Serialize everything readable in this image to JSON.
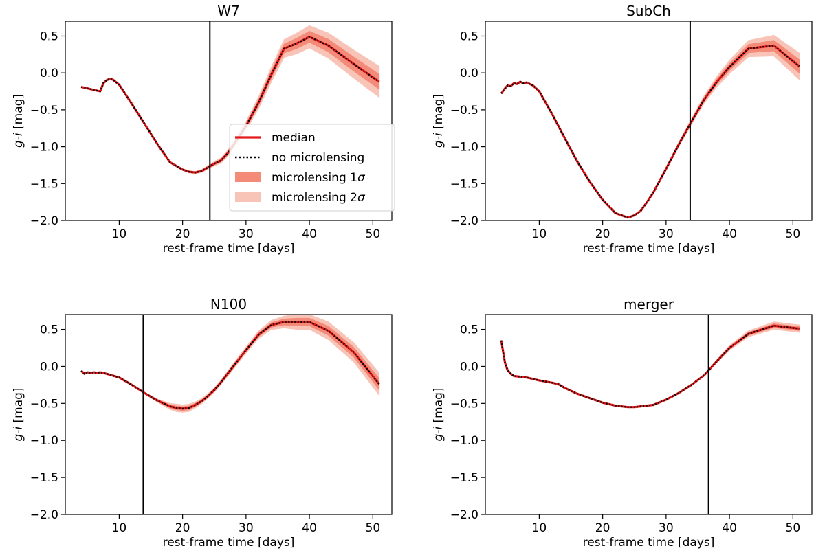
{
  "figure": {
    "ylabel_italic": "g-i",
    "ylabel_unit": " [mag]",
    "xlabel": "rest-frame time [days]",
    "colors": {
      "median": "#e31a1c",
      "no_microlensing": "#000000",
      "band_1sigma": "#f48a78",
      "band_2sigma": "#f9c4b8",
      "tfit_line": "#000000"
    }
  },
  "legend": {
    "entries": [
      {
        "key": "median",
        "label": "median"
      },
      {
        "key": "no_microlensing",
        "label": "no microlensing"
      },
      {
        "key": "band_1sigma",
        "label": "microlensing 1σ",
        "label_plain": "microlensing 1",
        "label_symbol": "σ"
      },
      {
        "key": "band_2sigma",
        "label": "microlensing 2σ",
        "label_plain": "microlensing 2",
        "label_symbol": "σ"
      }
    ],
    "placement": "center-right of first panel"
  },
  "chart_data": [
    {
      "type": "line",
      "title": "W7",
      "xlabel": "rest-frame time [days]",
      "ylabel": "g-i [mag]",
      "xlim": [
        1.5,
        53
      ],
      "ylim": [
        -2.0,
        0.7
      ],
      "xticks": [
        10,
        20,
        30,
        40,
        50
      ],
      "yticks": [
        0.5,
        0.0,
        -0.5,
        -1.0,
        -1.5,
        -2.0
      ],
      "ytick_labels": [
        "0.5",
        "0.0",
        "−0.5",
        "−1.0",
        "−1.5",
        "−2.0"
      ],
      "vertical_line_x": 24.3,
      "x": [
        4,
        5,
        6,
        7,
        7.5,
        8,
        8.5,
        9,
        10,
        12,
        14,
        16,
        18,
        20,
        21,
        22,
        23,
        24,
        25,
        26,
        27,
        28,
        30,
        32,
        34,
        36,
        38,
        40,
        43,
        47,
        51
      ],
      "median": [
        -0.19,
        -0.21,
        -0.23,
        -0.25,
        -0.14,
        -0.1,
        -0.08,
        -0.09,
        -0.16,
        -0.42,
        -0.69,
        -0.96,
        -1.21,
        -1.31,
        -1.34,
        -1.35,
        -1.33,
        -1.28,
        -1.23,
        -1.19,
        -1.1,
        -0.98,
        -0.72,
        -0.4,
        -0.02,
        0.33,
        0.4,
        0.49,
        0.37,
        0.12,
        -0.12
      ],
      "band_2sigma_spread": [
        0,
        0,
        0,
        0,
        0,
        0,
        0,
        0,
        0,
        0,
        0,
        0,
        0,
        0.01,
        0.015,
        0.015,
        0.02,
        0.025,
        0.03,
        0.035,
        0.04,
        0.05,
        0.06,
        0.08,
        0.1,
        0.12,
        0.14,
        0.15,
        0.17,
        0.19,
        0.21
      ],
      "band_1sigma_spread": [
        0,
        0,
        0,
        0,
        0,
        0,
        0,
        0,
        0,
        0,
        0,
        0,
        0,
        0.005,
        0.007,
        0.008,
        0.01,
        0.012,
        0.014,
        0.017,
        0.02,
        0.025,
        0.03,
        0.04,
        0.05,
        0.06,
        0.07,
        0.075,
        0.085,
        0.095,
        0.1
      ]
    },
    {
      "type": "line",
      "title": "SubCh",
      "xlabel": "rest-frame time [days]",
      "ylabel": "g-i [mag]",
      "xlim": [
        1.5,
        53
      ],
      "ylim": [
        -2.0,
        0.7
      ],
      "xticks": [
        10,
        20,
        30,
        40,
        50
      ],
      "yticks": [
        0.5,
        0.0,
        -0.5,
        -1.0,
        -1.5,
        -2.0
      ],
      "ytick_labels": [
        "0.5",
        "0.0",
        "−0.5",
        "−1.0",
        "−1.5",
        "−2.0"
      ],
      "vertical_line_x": 33.8,
      "x": [
        4,
        4.5,
        5,
        5.5,
        6,
        6.5,
        7,
        7.5,
        8,
        9,
        10,
        12,
        14,
        16,
        18,
        20,
        22,
        23,
        24,
        25,
        26,
        27,
        28,
        30,
        32,
        34,
        36,
        38,
        40,
        43,
        47,
        51
      ],
      "median": [
        -0.28,
        -0.22,
        -0.17,
        -0.18,
        -0.14,
        -0.15,
        -0.12,
        -0.14,
        -0.13,
        -0.17,
        -0.25,
        -0.55,
        -0.88,
        -1.2,
        -1.48,
        -1.72,
        -1.9,
        -1.93,
        -1.96,
        -1.93,
        -1.87,
        -1.75,
        -1.62,
        -1.3,
        -0.97,
        -0.66,
        -0.36,
        -0.12,
        0.08,
        0.33,
        0.37,
        0.09
      ],
      "band_2sigma_spread": [
        0,
        0,
        0,
        0,
        0,
        0,
        0,
        0,
        0,
        0,
        0,
        0,
        0,
        0,
        0,
        0,
        0,
        0,
        0,
        0,
        0,
        0,
        0.01,
        0.02,
        0.03,
        0.04,
        0.05,
        0.07,
        0.09,
        0.11,
        0.14,
        0.18
      ],
      "band_1sigma_spread": [
        0,
        0,
        0,
        0,
        0,
        0,
        0,
        0,
        0,
        0,
        0,
        0,
        0,
        0,
        0,
        0,
        0,
        0,
        0,
        0,
        0,
        0,
        0.005,
        0.01,
        0.015,
        0.02,
        0.025,
        0.035,
        0.045,
        0.055,
        0.07,
        0.09
      ]
    },
    {
      "type": "line",
      "title": "N100",
      "xlabel": "rest-frame time [days]",
      "ylabel": "g-i [mag]",
      "xlim": [
        1.5,
        53
      ],
      "ylim": [
        -2.0,
        0.7
      ],
      "xticks": [
        10,
        20,
        30,
        40,
        50
      ],
      "yticks": [
        0.5,
        0.0,
        -0.5,
        -1.0,
        -1.5,
        -2.0
      ],
      "ytick_labels": [
        "0.5",
        "0.0",
        "−0.5",
        "−1.0",
        "−1.5",
        "−2.0"
      ],
      "vertical_line_x": 13.8,
      "x": [
        4,
        4.5,
        5,
        5.5,
        6,
        6.5,
        7,
        8,
        10,
        12,
        14,
        16,
        18,
        19,
        20,
        21,
        22,
        23,
        24,
        25,
        26,
        28,
        30,
        32,
        34,
        36,
        38,
        40,
        43,
        47,
        51
      ],
      "median": [
        -0.06,
        -0.1,
        -0.08,
        -0.09,
        -0.08,
        -0.09,
        -0.08,
        -0.1,
        -0.15,
        -0.25,
        -0.36,
        -0.46,
        -0.54,
        -0.56,
        -0.57,
        -0.56,
        -0.52,
        -0.47,
        -0.4,
        -0.32,
        -0.22,
        0.0,
        0.22,
        0.43,
        0.56,
        0.6,
        0.6,
        0.6,
        0.48,
        0.19,
        -0.24
      ],
      "band_2sigma_spread": [
        0,
        0,
        0,
        0,
        0,
        0,
        0,
        0,
        0,
        0,
        0.01,
        0.02,
        0.04,
        0.05,
        0.05,
        0.05,
        0.04,
        0.035,
        0.03,
        0.03,
        0.03,
        0.04,
        0.04,
        0.05,
        0.06,
        0.08,
        0.1,
        0.1,
        0.12,
        0.13,
        0.15
      ],
      "band_1sigma_spread": [
        0,
        0,
        0,
        0,
        0,
        0,
        0,
        0,
        0,
        0,
        0.005,
        0.01,
        0.02,
        0.025,
        0.025,
        0.025,
        0.02,
        0.017,
        0.015,
        0.015,
        0.015,
        0.02,
        0.02,
        0.025,
        0.03,
        0.04,
        0.05,
        0.05,
        0.06,
        0.065,
        0.075
      ]
    },
    {
      "type": "line",
      "title": "merger",
      "xlabel": "rest-frame time [days]",
      "ylabel": "g-i [mag]",
      "xlim": [
        1.5,
        53
      ],
      "ylim": [
        -2.0,
        0.7
      ],
      "xticks": [
        10,
        20,
        30,
        40,
        50
      ],
      "yticks": [
        0.5,
        0.0,
        -0.5,
        -1.0,
        -1.5,
        -2.0
      ],
      "ytick_labels": [
        "0.5",
        "0.0",
        "−0.5",
        "−1.0",
        "−1.5",
        "−2.0"
      ],
      "vertical_line_x": 36.7,
      "x": [
        4,
        4.3,
        4.6,
        5,
        5.5,
        6,
        7,
        8,
        10,
        12,
        13,
        14,
        16,
        18,
        20,
        22,
        24,
        25,
        26,
        28,
        30,
        32,
        34,
        36,
        38,
        40,
        43,
        47,
        51
      ],
      "median": [
        0.35,
        0.2,
        0.05,
        -0.05,
        -0.1,
        -0.13,
        -0.14,
        -0.15,
        -0.19,
        -0.22,
        -0.24,
        -0.29,
        -0.37,
        -0.43,
        -0.49,
        -0.53,
        -0.55,
        -0.55,
        -0.54,
        -0.52,
        -0.45,
        -0.36,
        -0.25,
        -0.12,
        0.07,
        0.25,
        0.44,
        0.55,
        0.51
      ],
      "band_2sigma_spread": [
        0,
        0,
        0,
        0,
        0,
        0,
        0,
        0,
        0,
        0,
        0,
        0,
        0,
        0,
        0,
        0,
        0,
        0,
        0,
        0,
        0,
        0,
        0.005,
        0.01,
        0.02,
        0.03,
        0.04,
        0.05,
        0.05
      ],
      "band_1sigma_spread": [
        0,
        0,
        0,
        0,
        0,
        0,
        0,
        0,
        0,
        0,
        0,
        0,
        0,
        0,
        0,
        0,
        0,
        0,
        0,
        0,
        0,
        0,
        0.003,
        0.005,
        0.01,
        0.015,
        0.02,
        0.025,
        0.025
      ]
    }
  ]
}
